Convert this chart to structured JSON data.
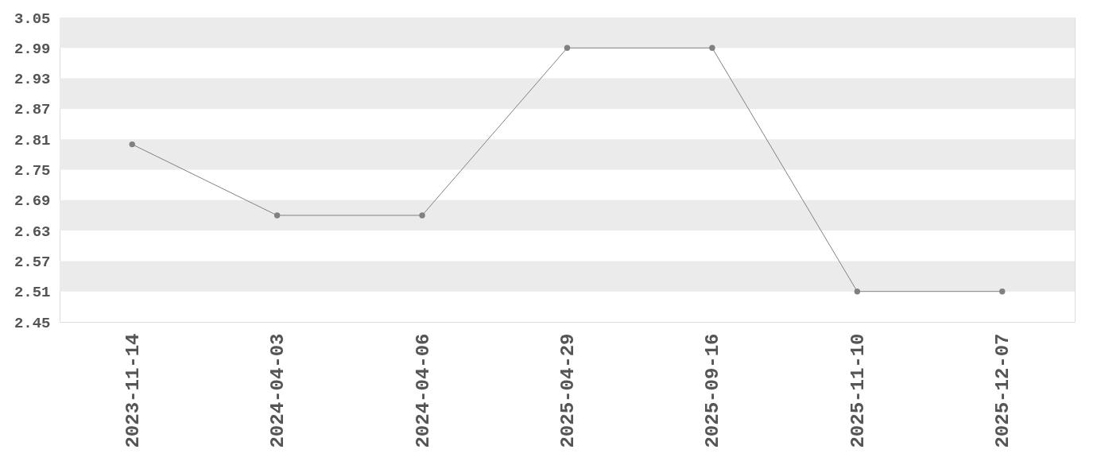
{
  "chart_data": {
    "type": "line",
    "categories": [
      "2023-11-14",
      "2024-04-03",
      "2024-04-06",
      "2025-04-29",
      "2025-09-16",
      "2025-11-10",
      "2025-12-07"
    ],
    "series": [
      {
        "color": "#808080",
        "values": [
          2.8,
          2.66,
          2.66,
          2.99,
          2.99,
          2.51,
          2.51
        ]
      }
    ],
    "ylim": [
      2.45,
      3.05
    ],
    "yticks": [
      2.45,
      2.51,
      2.57,
      2.63,
      2.69,
      2.75,
      2.81,
      2.87,
      2.93,
      2.99,
      3.05
    ],
    "bands": [
      {
        "axis": "y",
        "from": 2.99,
        "to": 3.05,
        "color": "#ebebeb"
      },
      {
        "axis": "y",
        "from": 2.87,
        "to": 2.93,
        "color": "#ebebeb"
      },
      {
        "axis": "y",
        "from": 2.75,
        "to": 2.81,
        "color": "#ebebeb"
      },
      {
        "axis": "y",
        "from": 2.63,
        "to": 2.69,
        "color": "#ebebeb"
      },
      {
        "axis": "y",
        "from": 2.51,
        "to": 2.57,
        "color": "#ebebeb"
      }
    ],
    "marker": "circle",
    "line_style": "solid",
    "grid": false
  }
}
